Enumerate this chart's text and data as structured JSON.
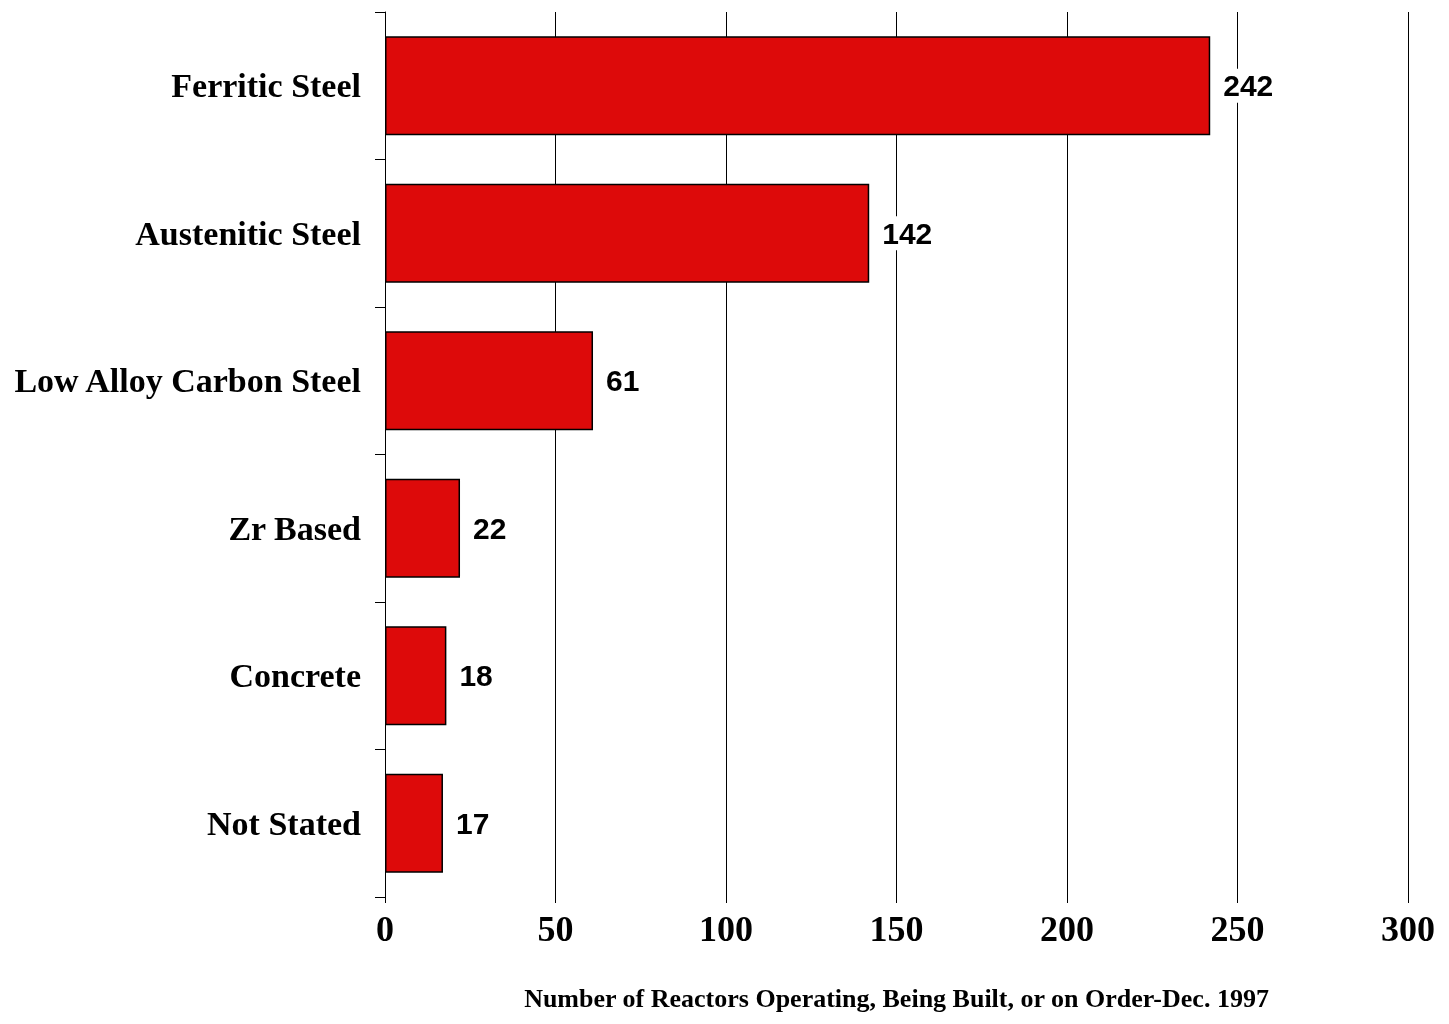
{
  "chart_data": {
    "type": "bar",
    "orientation": "horizontal",
    "xlabel": "Number of Reactors Operating, Being Built, or on Order-Dec. 1997",
    "categories": [
      "Ferritic Steel",
      "Austenitic Steel",
      "Low Alloy Carbon Steel",
      "Zr Based",
      "Concrete",
      "Not Stated"
    ],
    "values": [
      242,
      142,
      61,
      22,
      18,
      17
    ],
    "color": "#dd0a0a",
    "data_labels": true,
    "xlim": [
      0,
      300
    ],
    "xticks": [
      0,
      50,
      100,
      150,
      200,
      250,
      300
    ],
    "grid": "x"
  }
}
